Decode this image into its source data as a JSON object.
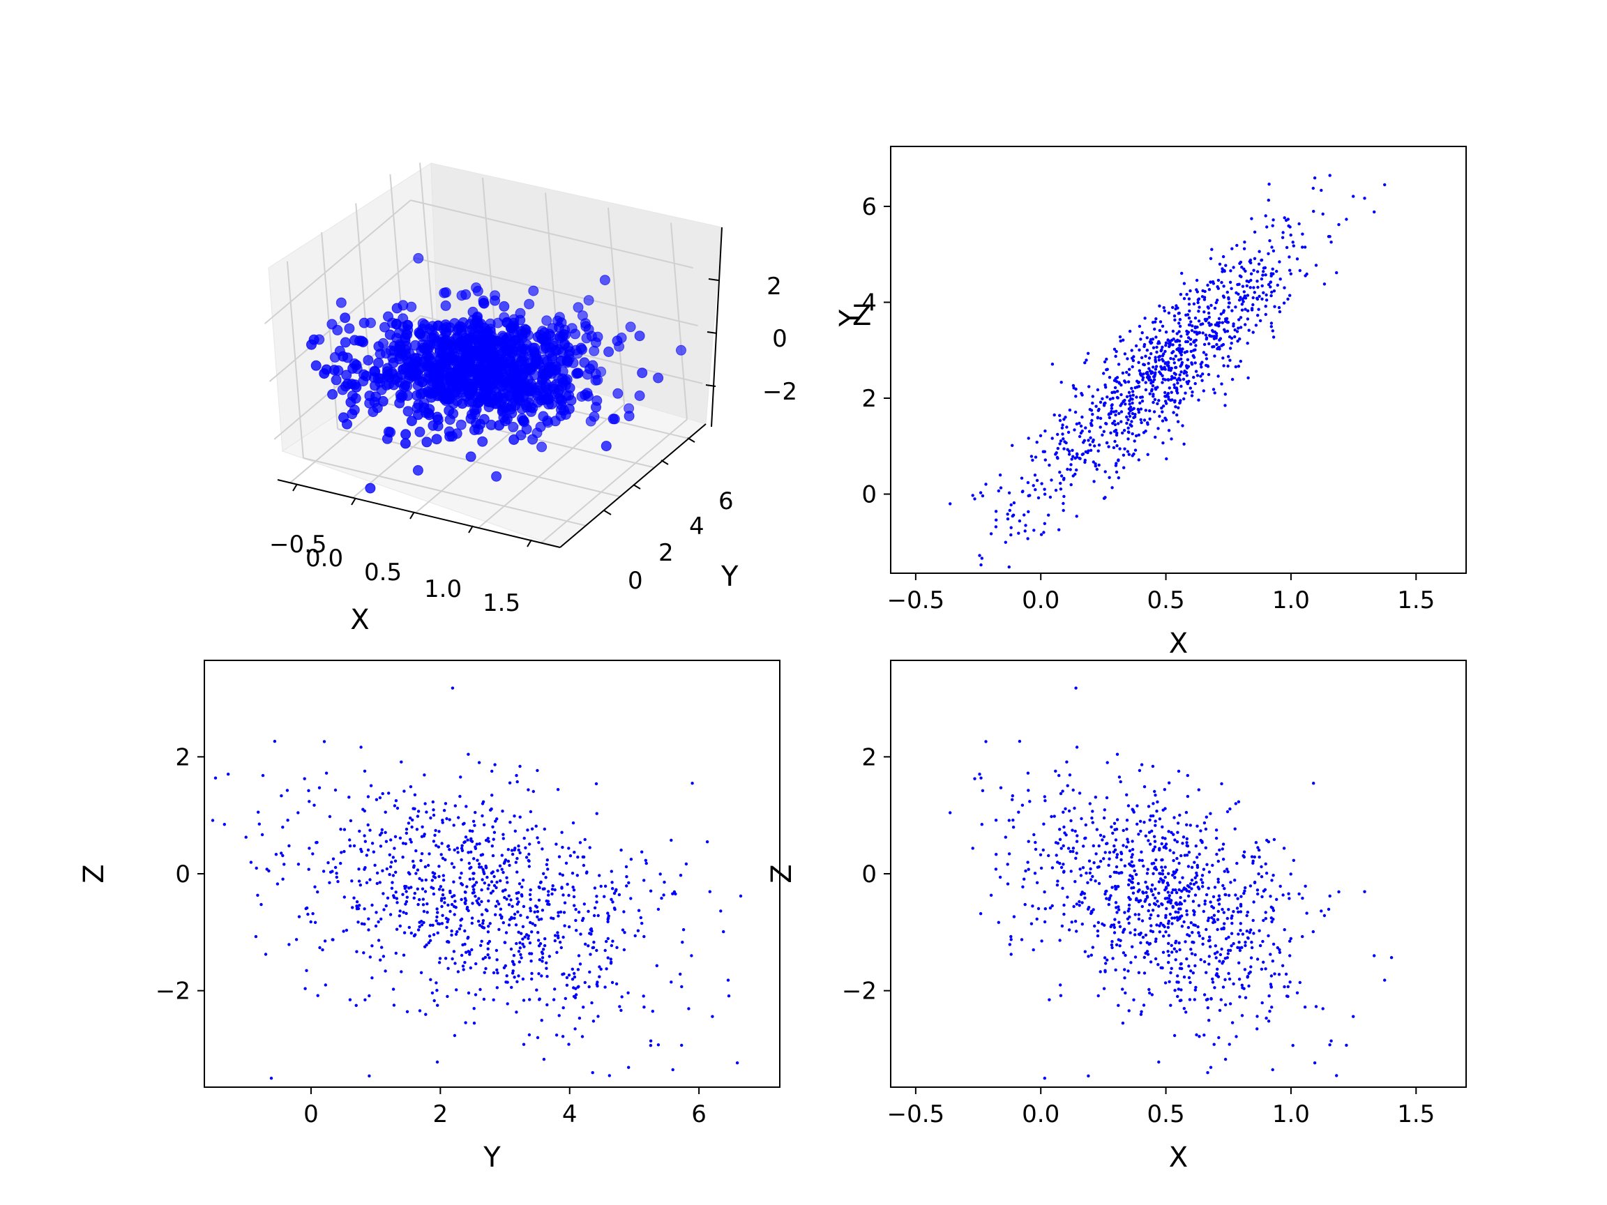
{
  "figure": {
    "background": "#ffffff",
    "point_color": "#0000ff"
  },
  "chart_data": [
    {
      "id": "xyz",
      "type": "scatter",
      "projection": "3d",
      "title": "",
      "xlabel": "X",
      "ylabel": "Y",
      "zlabel": "Z",
      "xlim": [
        -0.6,
        1.65
      ],
      "ylim": [
        -1.5,
        7.0
      ],
      "zlim": [
        -3.4,
        3.4
      ],
      "xticks": [
        "−0.5",
        "0.0",
        "0.5",
        "1.0",
        "1.5"
      ],
      "yticks": [
        "0",
        "2",
        "4",
        "6"
      ],
      "zticks": [
        "−2",
        "0",
        "2"
      ],
      "grid": true,
      "sample_points": 1000,
      "distribution": {
        "x_mean": 0.5,
        "x_sd": 0.3,
        "y_from_x": [
          0.4,
          4.5
        ],
        "y_sd": 0.7,
        "z_from_x": [
          0.3,
          -1.5
        ],
        "z_sd": 0.9
      }
    },
    {
      "id": "xy",
      "type": "scatter",
      "title": "",
      "xlabel": "X",
      "ylabel": "Y",
      "xlim": [
        -0.6,
        1.7
      ],
      "ylim": [
        -1.65,
        7.25
      ],
      "xticks": [
        -0.5,
        0.0,
        0.5,
        1.0,
        1.5
      ],
      "xtick_labels": [
        "−0.5",
        "0.0",
        "0.5",
        "1.0",
        "1.5"
      ],
      "yticks": [
        0,
        2,
        4,
        6
      ],
      "ytick_labels": [
        "0",
        "2",
        "4",
        "6"
      ],
      "grid": false
    },
    {
      "id": "yz",
      "type": "scatter",
      "title": "",
      "xlabel": "Y",
      "ylabel": "Z",
      "xlim": [
        -1.65,
        7.25
      ],
      "ylim": [
        -3.65,
        3.65
      ],
      "xticks": [
        0,
        2,
        4,
        6
      ],
      "xtick_labels": [
        "0",
        "2",
        "4",
        "6"
      ],
      "yticks": [
        -2,
        0,
        2
      ],
      "ytick_labels": [
        "−2",
        "0",
        "2"
      ],
      "grid": false
    },
    {
      "id": "xz",
      "type": "scatter",
      "title": "",
      "xlabel": "X",
      "ylabel": "Z",
      "xlim": [
        -0.6,
        1.7
      ],
      "ylim": [
        -3.65,
        3.65
      ],
      "xticks": [
        -0.5,
        0.0,
        0.5,
        1.0,
        1.5
      ],
      "xtick_labels": [
        "−0.5",
        "0.0",
        "0.5",
        "1.0",
        "1.5"
      ],
      "yticks": [
        -2,
        0,
        2
      ],
      "ytick_labels": [
        "−2",
        "0",
        "2"
      ],
      "grid": false
    }
  ]
}
